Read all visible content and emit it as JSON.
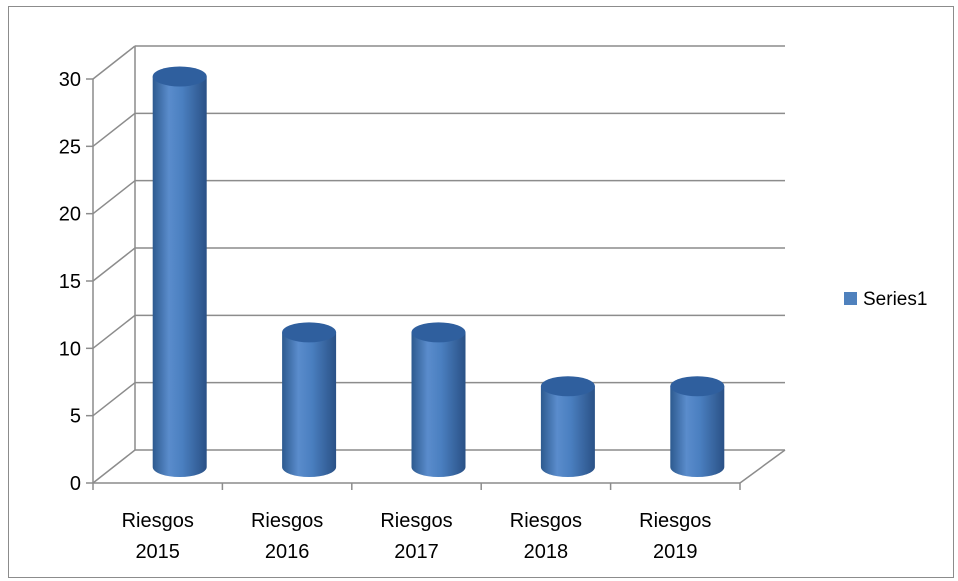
{
  "chart_data": {
    "type": "bar",
    "style": "3d-cylinder",
    "categories": [
      [
        "Riesgos",
        "2015"
      ],
      [
        "Riesgos",
        "2016"
      ],
      [
        "Riesgos",
        "2017"
      ],
      [
        "Riesgos",
        "2018"
      ],
      [
        "Riesgos",
        "2019"
      ]
    ],
    "series": [
      {
        "name": "Series1",
        "values": [
          29,
          10,
          10,
          6,
          6
        ],
        "color": "#4f81bd"
      }
    ],
    "yticks": [
      "0",
      "5",
      "10",
      "15",
      "20",
      "25",
      "30"
    ],
    "ylim": [
      0,
      30
    ],
    "grid": true,
    "legend_position": "right",
    "title": "",
    "xlabel": "",
    "ylabel": ""
  }
}
